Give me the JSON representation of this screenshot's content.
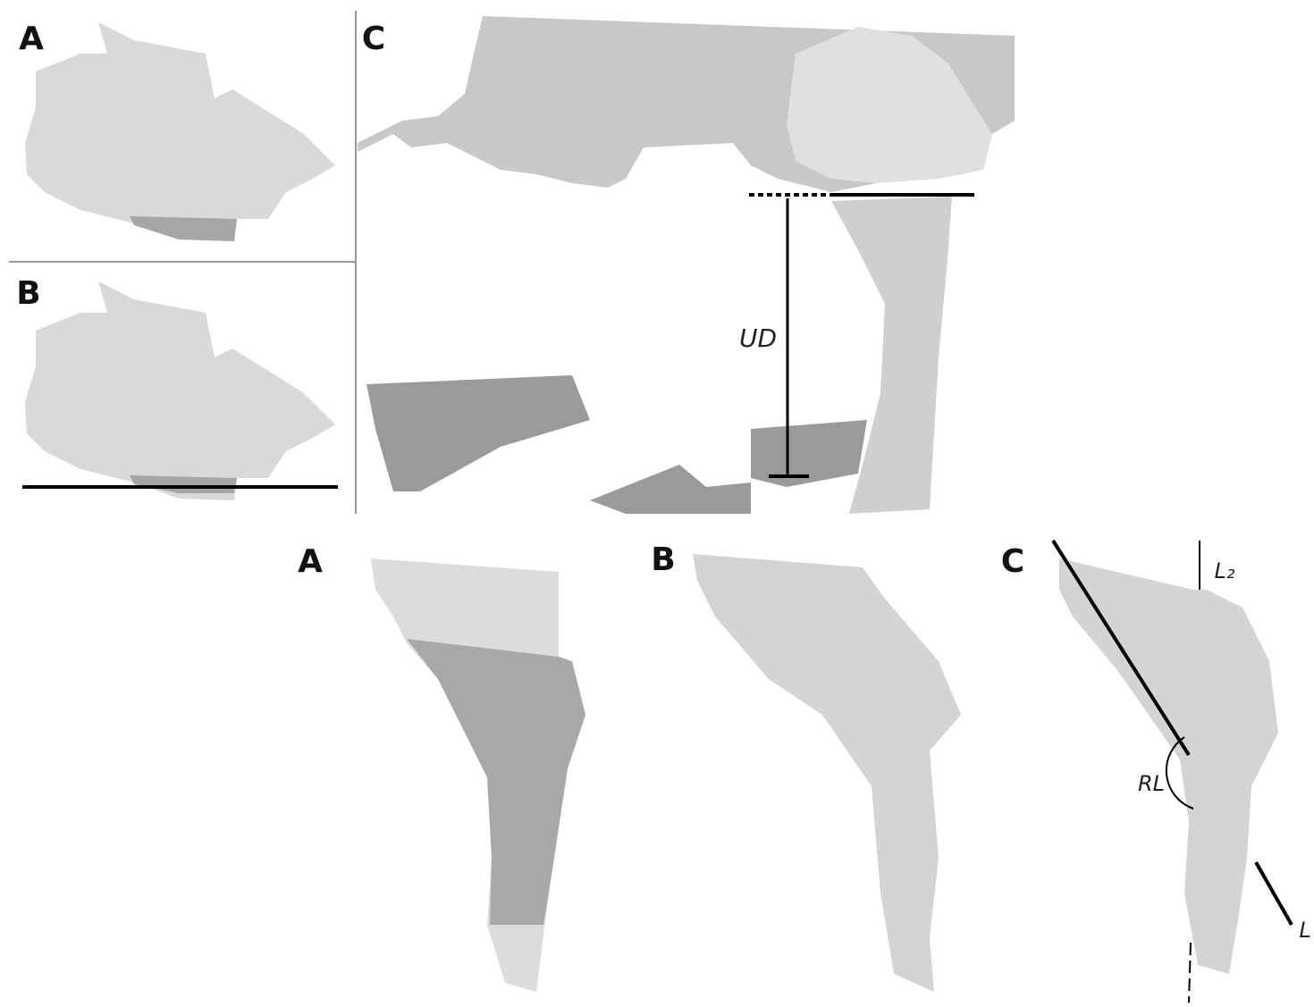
{
  "top_panels": [
    {
      "label": "A"
    },
    {
      "label": "B"
    },
    {
      "label": "C"
    }
  ],
  "top_annotations": {
    "ud": "UD"
  },
  "bottom_panels": [
    {
      "label": "A"
    },
    {
      "label": "B"
    },
    {
      "label": "C"
    }
  ],
  "bottom_annotations": {
    "l2": "L₂",
    "rl": "RL",
    "l": "L"
  }
}
